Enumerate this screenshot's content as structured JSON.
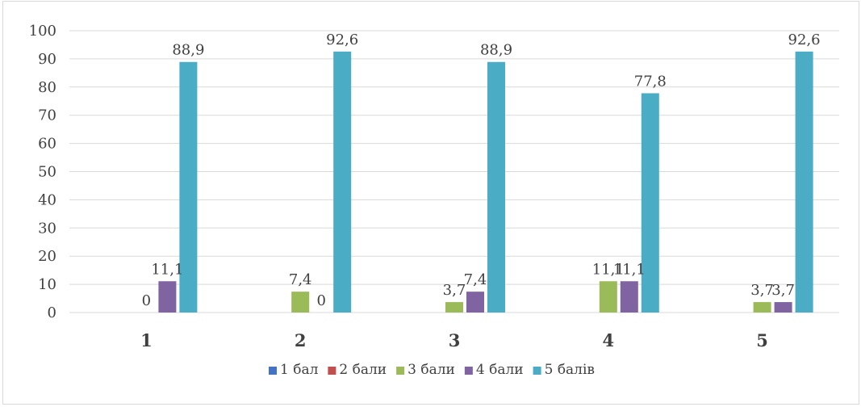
{
  "chart_data": {
    "type": "bar",
    "categories": [
      "1",
      "2",
      "3",
      "4",
      "5"
    ],
    "series": [
      {
        "name": "1 бал",
        "color": "#4472C4",
        "values": [
          null,
          null,
          null,
          null,
          null
        ],
        "labels": [
          "",
          "",
          "",
          "",
          ""
        ]
      },
      {
        "name": "2 бали",
        "color": "#C0504D",
        "values": [
          null,
          null,
          null,
          null,
          null
        ],
        "labels": [
          "",
          "",
          "",
          "",
          ""
        ]
      },
      {
        "name": "3 бали",
        "color": "#9BBB59",
        "values": [
          0,
          7.4,
          3.7,
          11.1,
          3.7
        ],
        "labels": [
          "0",
          "7,4",
          "3,7",
          "11,1",
          "3,7"
        ]
      },
      {
        "name": "4 бали",
        "color": "#8064A2",
        "values": [
          11.1,
          0,
          7.4,
          11.1,
          3.7
        ],
        "labels": [
          "11,1",
          "0",
          "7,4",
          "11,1",
          "3,7"
        ]
      },
      {
        "name": "5 балів",
        "color": "#4BACC6",
        "values": [
          88.9,
          92.6,
          88.9,
          77.8,
          92.6
        ],
        "labels": [
          "88,9",
          "92,6",
          "88,9",
          "77,8",
          "92,6"
        ]
      }
    ],
    "ylim": [
      0,
      100
    ],
    "yticks": [
      0,
      10,
      20,
      30,
      40,
      50,
      60,
      70,
      80,
      90,
      100
    ],
    "grid": true,
    "legend_position": "bottom",
    "gridline_color": "#d9d9d9"
  }
}
